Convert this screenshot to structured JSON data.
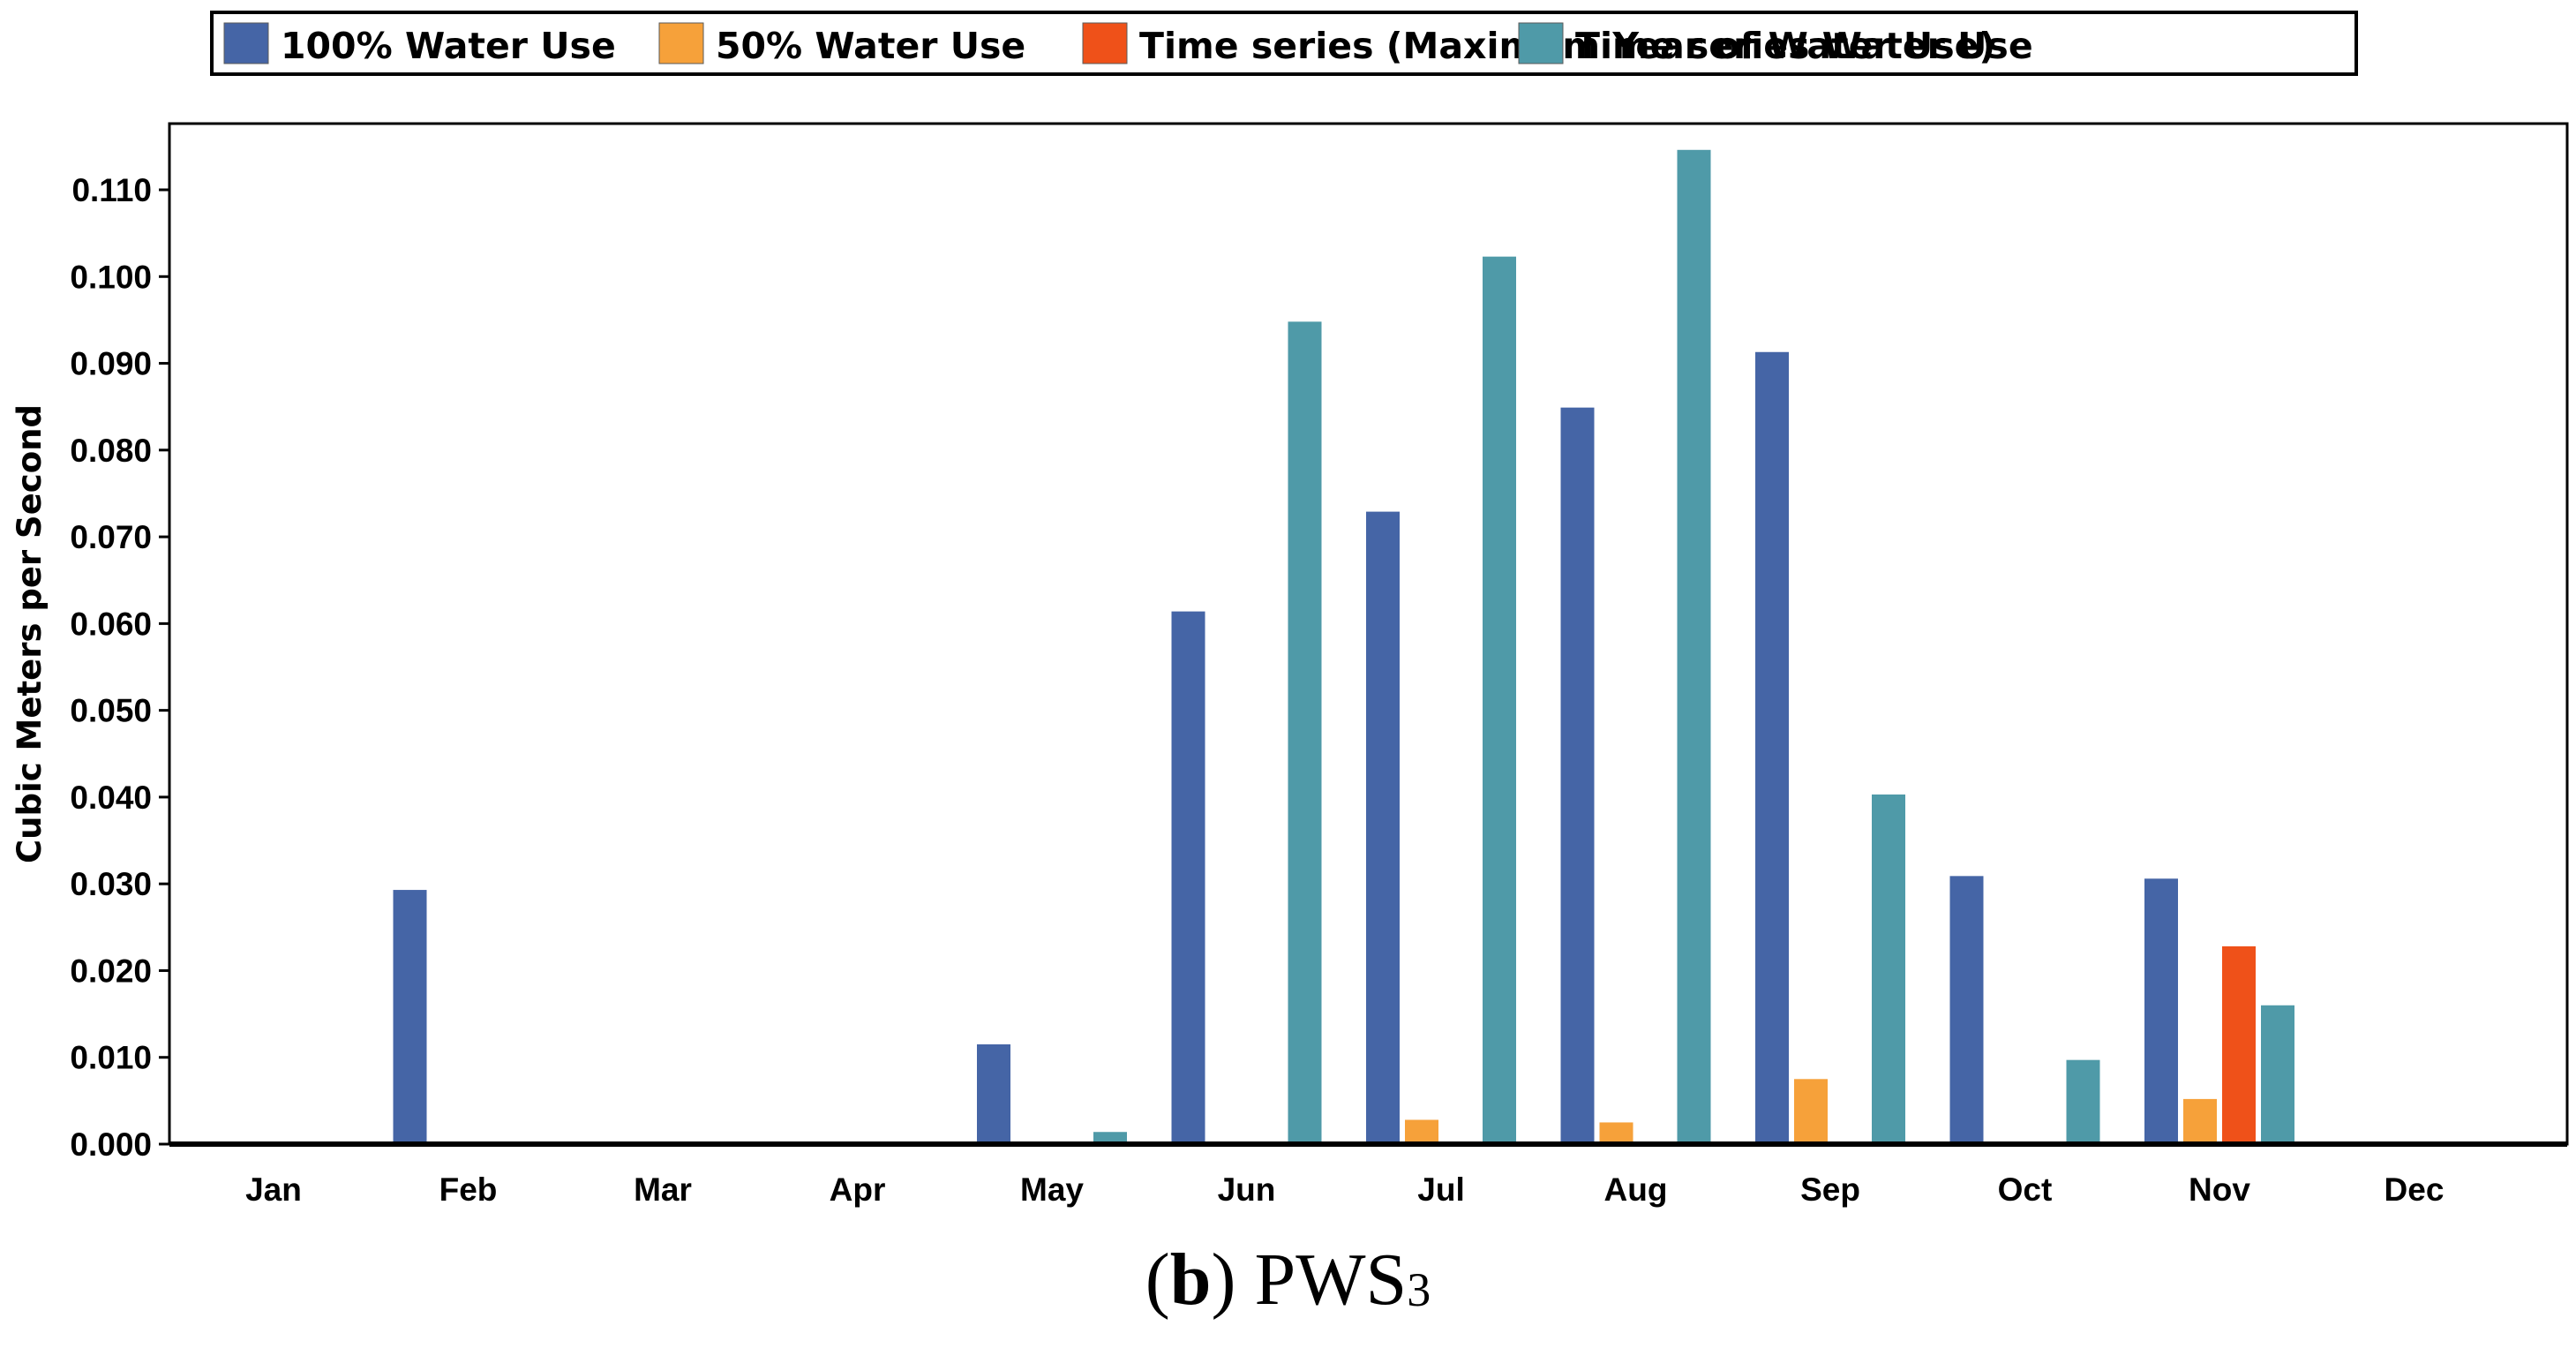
{
  "chart_data": {
    "type": "bar",
    "title": "",
    "xlabel": "",
    "ylabel": "Cubic Meters per Second",
    "ylim": [
      0,
      0.115
    ],
    "yticks": [
      "0.000",
      "0.010",
      "0.020",
      "0.030",
      "0.040",
      "0.050",
      "0.060",
      "0.070",
      "0.080",
      "0.090",
      "0.100",
      "0.110"
    ],
    "ytick_values": [
      0,
      0.01,
      0.02,
      0.03,
      0.04,
      0.05,
      0.06,
      0.07,
      0.08,
      0.09,
      0.1,
      0.11
    ],
    "categories": [
      "Jan",
      "Feb",
      "Mar",
      "Apr",
      "May",
      "Jun",
      "Jul",
      "Aug",
      "Sep",
      "Oct",
      "Nov",
      "Dec"
    ],
    "legend_position": "top",
    "grid": false,
    "series": [
      {
        "name": "100% Water Use",
        "color": "#4565A6",
        "values": [
          0,
          0.0293,
          0,
          0,
          0.0115,
          0.0614,
          0.0729,
          0.0849,
          0.0913,
          0.0309,
          0.0306,
          0
        ]
      },
      {
        "name": "50% Water Use",
        "color": "#F6A13A",
        "values": [
          0,
          0,
          0,
          0,
          0,
          0,
          0.0028,
          0.0025,
          0.0075,
          0,
          0.0052,
          0
        ]
      },
      {
        "name": "Time series (Maximum Year of Water Use)",
        "color": "#EF5119",
        "values": [
          0,
          0,
          0,
          0,
          0,
          0,
          0,
          0,
          0,
          0,
          0.0228,
          0
        ]
      },
      {
        "name": "Time series Water Use",
        "color": "#4F9AA8",
        "values": [
          0,
          0,
          0,
          0,
          0.0014,
          0.0948,
          0.1023,
          0.1146,
          0.0403,
          0.0097,
          0.016,
          0
        ]
      }
    ]
  },
  "caption": {
    "label": "b",
    "text": "PWS",
    "subscript": "3"
  }
}
